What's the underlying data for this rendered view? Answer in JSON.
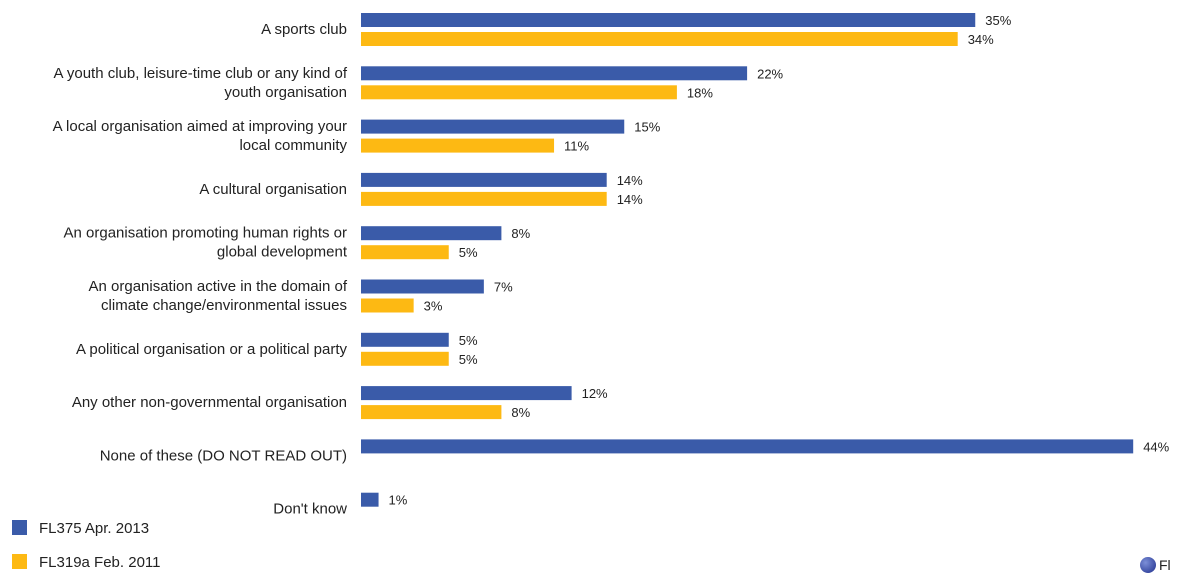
{
  "chart_data": {
    "type": "bar",
    "orientation": "horizontal",
    "categories": [
      [
        "A sports club"
      ],
      [
        "A youth club, leisure-time club or any kind of",
        "youth organisation"
      ],
      [
        "A local organisation aimed at improving your",
        "local community"
      ],
      [
        "A cultural organisation"
      ],
      [
        "An organisation promoting human rights or",
        "global development"
      ],
      [
        "An organisation active in the domain of",
        "climate change/environmental issues"
      ],
      [
        "A political organisation or a political party"
      ],
      [
        "Any other non-governmental organisation"
      ],
      [
        "None of these (DO NOT READ OUT)"
      ],
      [
        "Don't know"
      ]
    ],
    "series": [
      {
        "name": "FL375 Apr. 2013",
        "color": "#3A5BA9",
        "values": [
          35,
          22,
          15,
          14,
          8,
          7,
          5,
          12,
          44,
          1
        ],
        "labels": [
          "35%",
          "22%",
          "15%",
          "14%",
          "8%",
          "7%",
          "5%",
          "12%",
          "44%",
          "1%"
        ]
      },
      {
        "name": "FL319a Feb. 2011",
        "color": "#FDB913",
        "values": [
          34,
          18,
          11,
          14,
          5,
          3,
          5,
          8,
          null,
          null
        ],
        "labels": [
          "34%",
          "18%",
          "11%",
          "14%",
          "5%",
          "3%",
          "5%",
          "8%",
          null,
          null
        ]
      }
    ],
    "legend_position": "bottom-left",
    "grid": false
  },
  "legend": {
    "items": [
      {
        "label": "FL375 Apr. 2013",
        "color": "#3A5BA9"
      },
      {
        "label": "FL319a Feb. 2011",
        "color": "#FDB913"
      }
    ]
  },
  "logo": {
    "text": "Fl"
  }
}
